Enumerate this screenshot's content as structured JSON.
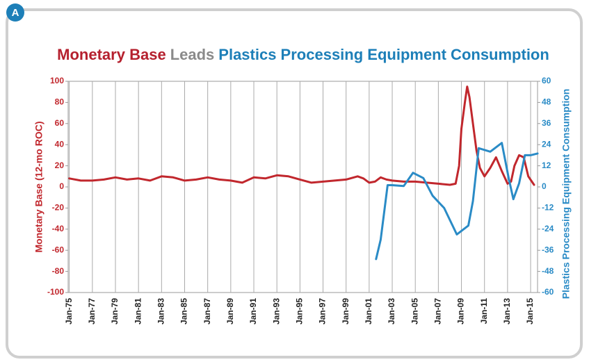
{
  "badge": "A",
  "chart_data": {
    "type": "line",
    "title": [
      "Monetary Base",
      "Leads",
      "Plastics Processing Equipment Consumption"
    ],
    "title_colors": [
      "#b5202e",
      "#8a8a8a",
      "#1d7fb8"
    ],
    "ylabel": "Monetary Base (12-mo ROC)",
    "y2label": "Plastics Processing Equipment Consumption",
    "grid": "x",
    "xlim": [
      1974.9,
      2015.6
    ],
    "xticks": [
      {
        "value": 1975,
        "label": "Jan-75"
      },
      {
        "value": 1977,
        "label": "Jan-77"
      },
      {
        "value": 1979,
        "label": "Jan-79"
      },
      {
        "value": 1981,
        "label": "Jan-81"
      },
      {
        "value": 1983,
        "label": "Jan-83"
      },
      {
        "value": 1985,
        "label": "Jan-85"
      },
      {
        "value": 1987,
        "label": "Jan-87"
      },
      {
        "value": 1989,
        "label": "Jan-89"
      },
      {
        "value": 1991,
        "label": "Jan-91"
      },
      {
        "value": 1993,
        "label": "Jan-93"
      },
      {
        "value": 1995,
        "label": "Jan-95"
      },
      {
        "value": 1997,
        "label": "Jan-97"
      },
      {
        "value": 1999,
        "label": "Jan-99"
      },
      {
        "value": 2001,
        "label": "Jan-01"
      },
      {
        "value": 2003,
        "label": "Jan-03"
      },
      {
        "value": 2005,
        "label": "Jan-05"
      },
      {
        "value": 2007,
        "label": "Jan-07"
      },
      {
        "value": 2009,
        "label": "Jan-09"
      },
      {
        "value": 2011,
        "label": "Jan-11"
      },
      {
        "value": 2013,
        "label": "Jan-13"
      },
      {
        "value": 2015,
        "label": "Jan-15"
      }
    ],
    "ylim": [
      -100,
      100
    ],
    "yticks": [
      100,
      80,
      60,
      40,
      20,
      0,
      -20,
      -40,
      -60,
      -80,
      -100
    ],
    "y2lim": [
      -60,
      60
    ],
    "y2ticks": [
      60,
      48,
      36,
      24,
      12,
      0,
      -12,
      -24,
      -36,
      -48,
      -60
    ],
    "series": [
      {
        "name": "Monetary Base",
        "color": "#c1272d",
        "axis": "y",
        "x": [
          1975,
          1976,
          1977,
          1978,
          1979,
          1980,
          1981,
          1982,
          1983,
          1984,
          1985,
          1986,
          1987,
          1988,
          1989,
          1990,
          1991,
          1992,
          1993,
          1994,
          1995,
          1996,
          1997,
          1998,
          1999,
          2000,
          2000.5,
          2001,
          2001.5,
          2002,
          2002.5,
          2003,
          2004,
          2005,
          2006,
          2007,
          2008,
          2008.5,
          2008.8,
          2009,
          2009.3,
          2009.5,
          2009.7,
          2010,
          2010.3,
          2010.6,
          2011,
          2011.5,
          2012,
          2012.5,
          2013,
          2013.3,
          2013.6,
          2014,
          2014.4,
          2014.8,
          2015.3
        ],
        "values": [
          8,
          6,
          6,
          7,
          9,
          7,
          8,
          6,
          10,
          9,
          6,
          7,
          9,
          7,
          6,
          4,
          9,
          8,
          11,
          10,
          7,
          4,
          5,
          6,
          7,
          10,
          8,
          4,
          5,
          9,
          7,
          6,
          5,
          5,
          4,
          3,
          2,
          3,
          20,
          55,
          80,
          95,
          85,
          60,
          35,
          18,
          10,
          18,
          28,
          15,
          3,
          5,
          20,
          30,
          28,
          10,
          2
        ]
      },
      {
        "name": "Plastics Processing Equipment Consumption",
        "color": "#2a8bc6",
        "axis": "y2",
        "x": [
          2001.6,
          2002,
          2002.6,
          2003,
          2004,
          2004.8,
          2005.7,
          2006.5,
          2007.5,
          2008.6,
          2009.6,
          2010,
          2010.5,
          2011.5,
          2012.5,
          2013.1,
          2013.5,
          2014,
          2014.5,
          2015,
          2015.6
        ],
        "values": [
          -41,
          -30,
          1,
          1,
          0.5,
          8,
          5,
          -5,
          -12,
          -27,
          -22,
          -8,
          22,
          20,
          25,
          5,
          -7,
          2,
          18,
          18,
          19
        ]
      }
    ]
  }
}
